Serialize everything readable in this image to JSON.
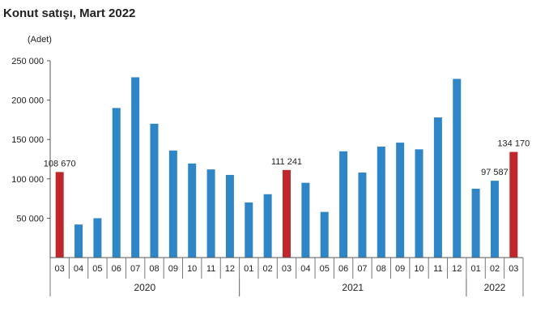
{
  "chart_data": {
    "type": "bar",
    "title": "Konut satışı, Mart 2022",
    "ylabel": "(Adet)",
    "ylim": [
      0,
      250000
    ],
    "yticks": [
      {
        "v": 50000,
        "label": "50 000"
      },
      {
        "v": 100000,
        "label": "100 000"
      },
      {
        "v": 150000,
        "label": "150 000"
      },
      {
        "v": 200000,
        "label": "200 000"
      },
      {
        "v": 250000,
        "label": "250 000"
      }
    ],
    "colors": {
      "default": "#2f86c6",
      "highlight": "#c0272d"
    },
    "years": [
      {
        "label": "2020",
        "start": 0,
        "end": 9
      },
      {
        "label": "2021",
        "start": 10,
        "end": 21
      },
      {
        "label": "2022",
        "start": 22,
        "end": 24
      }
    ],
    "categories": [
      "03",
      "04",
      "05",
      "06",
      "07",
      "08",
      "09",
      "10",
      "11",
      "12",
      "01",
      "02",
      "03",
      "04",
      "05",
      "06",
      "07",
      "08",
      "09",
      "10",
      "11",
      "12",
      "01",
      "02",
      "03"
    ],
    "values": [
      108670,
      42000,
      50000,
      190000,
      229000,
      170000,
      136000,
      119500,
      112000,
      105000,
      70000,
      80500,
      111241,
      95000,
      58000,
      135000,
      108000,
      141000,
      146000,
      137500,
      178000,
      227000,
      87500,
      97587,
      134170
    ],
    "highlight": [
      true,
      false,
      false,
      false,
      false,
      false,
      false,
      false,
      false,
      false,
      false,
      false,
      true,
      false,
      false,
      false,
      false,
      false,
      false,
      false,
      false,
      false,
      false,
      false,
      true
    ],
    "data_labels": [
      {
        "index": 0,
        "text": "108 670"
      },
      {
        "index": 12,
        "text": "111 241"
      },
      {
        "index": 23,
        "text": "97 587"
      },
      {
        "index": 24,
        "text": "134 170"
      }
    ]
  }
}
